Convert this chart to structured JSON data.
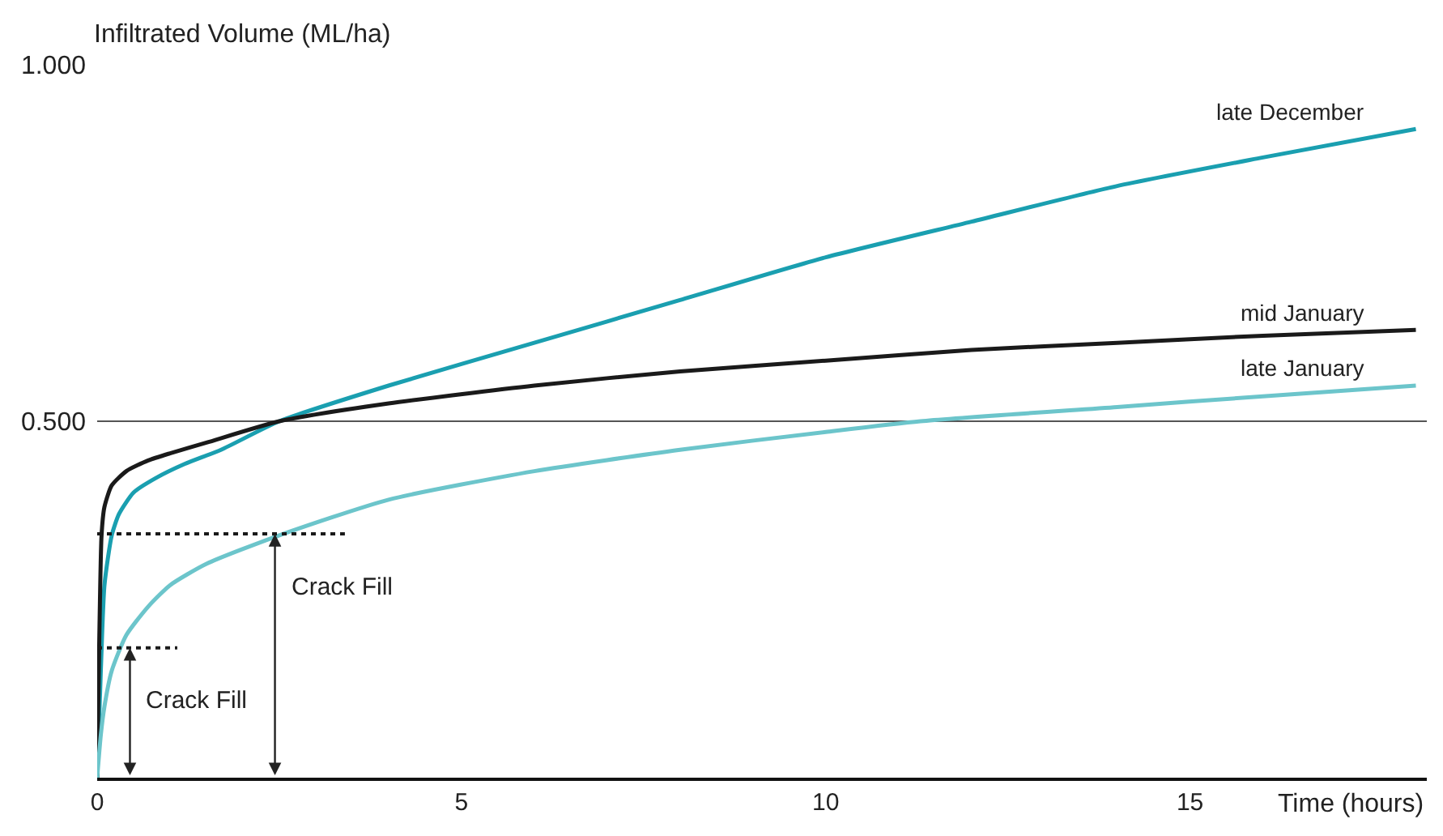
{
  "chart_data": {
    "type": "line",
    "xlabel": "Time (hours)",
    "ylabel": "Infiltrated Volume (ML/ha)",
    "xlim": [
      0,
      18.25
    ],
    "ylim": [
      0,
      1.0
    ],
    "xticks": [
      0,
      5,
      10,
      15
    ],
    "yticks": [
      {
        "value": 0.5,
        "label": "0.500"
      },
      {
        "value": 1.0,
        "label": "1.000"
      }
    ],
    "grid": "y",
    "legend": false,
    "line_style": "solid",
    "series": [
      {
        "name": "late December",
        "color": "#1a9fb0",
        "x": [
          0,
          0.05,
          0.1,
          0.2,
          0.3,
          0.5,
          0.8,
          1.2,
          1.7,
          2.5,
          4,
          6,
          8,
          10,
          12,
          14,
          16,
          18.1
        ],
        "values": [
          0,
          0.15,
          0.27,
          0.34,
          0.37,
          0.4,
          0.42,
          0.44,
          0.46,
          0.5,
          0.55,
          0.61,
          0.67,
          0.73,
          0.78,
          0.83,
          0.87,
          0.91
        ]
      },
      {
        "name": "mid January",
        "color": "#1a1a1a",
        "x": [
          0,
          0.03,
          0.06,
          0.1,
          0.2,
          0.4,
          0.7,
          1,
          1.5,
          2.5,
          4,
          6,
          8,
          10,
          12,
          14,
          16,
          18.1
        ],
        "values": [
          0,
          0.2,
          0.34,
          0.38,
          0.41,
          0.43,
          0.445,
          0.455,
          0.47,
          0.5,
          0.525,
          0.55,
          0.57,
          0.585,
          0.6,
          0.61,
          0.62,
          0.628
        ]
      },
      {
        "name": "late January",
        "color": "#6cc5cb",
        "x": [
          0,
          0.05,
          0.1,
          0.2,
          0.4,
          0.7,
          1,
          1.5,
          2.5,
          4,
          6,
          8,
          10,
          11.3,
          14,
          16,
          18.1
        ],
        "values": [
          0,
          0.06,
          0.1,
          0.15,
          0.2,
          0.24,
          0.27,
          0.3,
          0.34,
          0.39,
          0.43,
          0.46,
          0.485,
          0.5,
          0.52,
          0.535,
          0.55
        ]
      },
      {
        "color": "#1a1a1a",
        "line_style": "dotted",
        "x": [
          0,
          3.4
        ],
        "values": [
          0.342,
          0.342
        ]
      },
      {
        "color": "#1a1a1a",
        "line_style": "dotted",
        "x": [
          0,
          1.1
        ],
        "values": [
          0.182,
          0.182
        ]
      }
    ],
    "annotations": [
      {
        "text": "Crack Fill",
        "x": 0.45,
        "y": 0.182
      },
      {
        "text": "Crack Fill",
        "x": 2.44,
        "y": 0.342
      }
    ]
  }
}
